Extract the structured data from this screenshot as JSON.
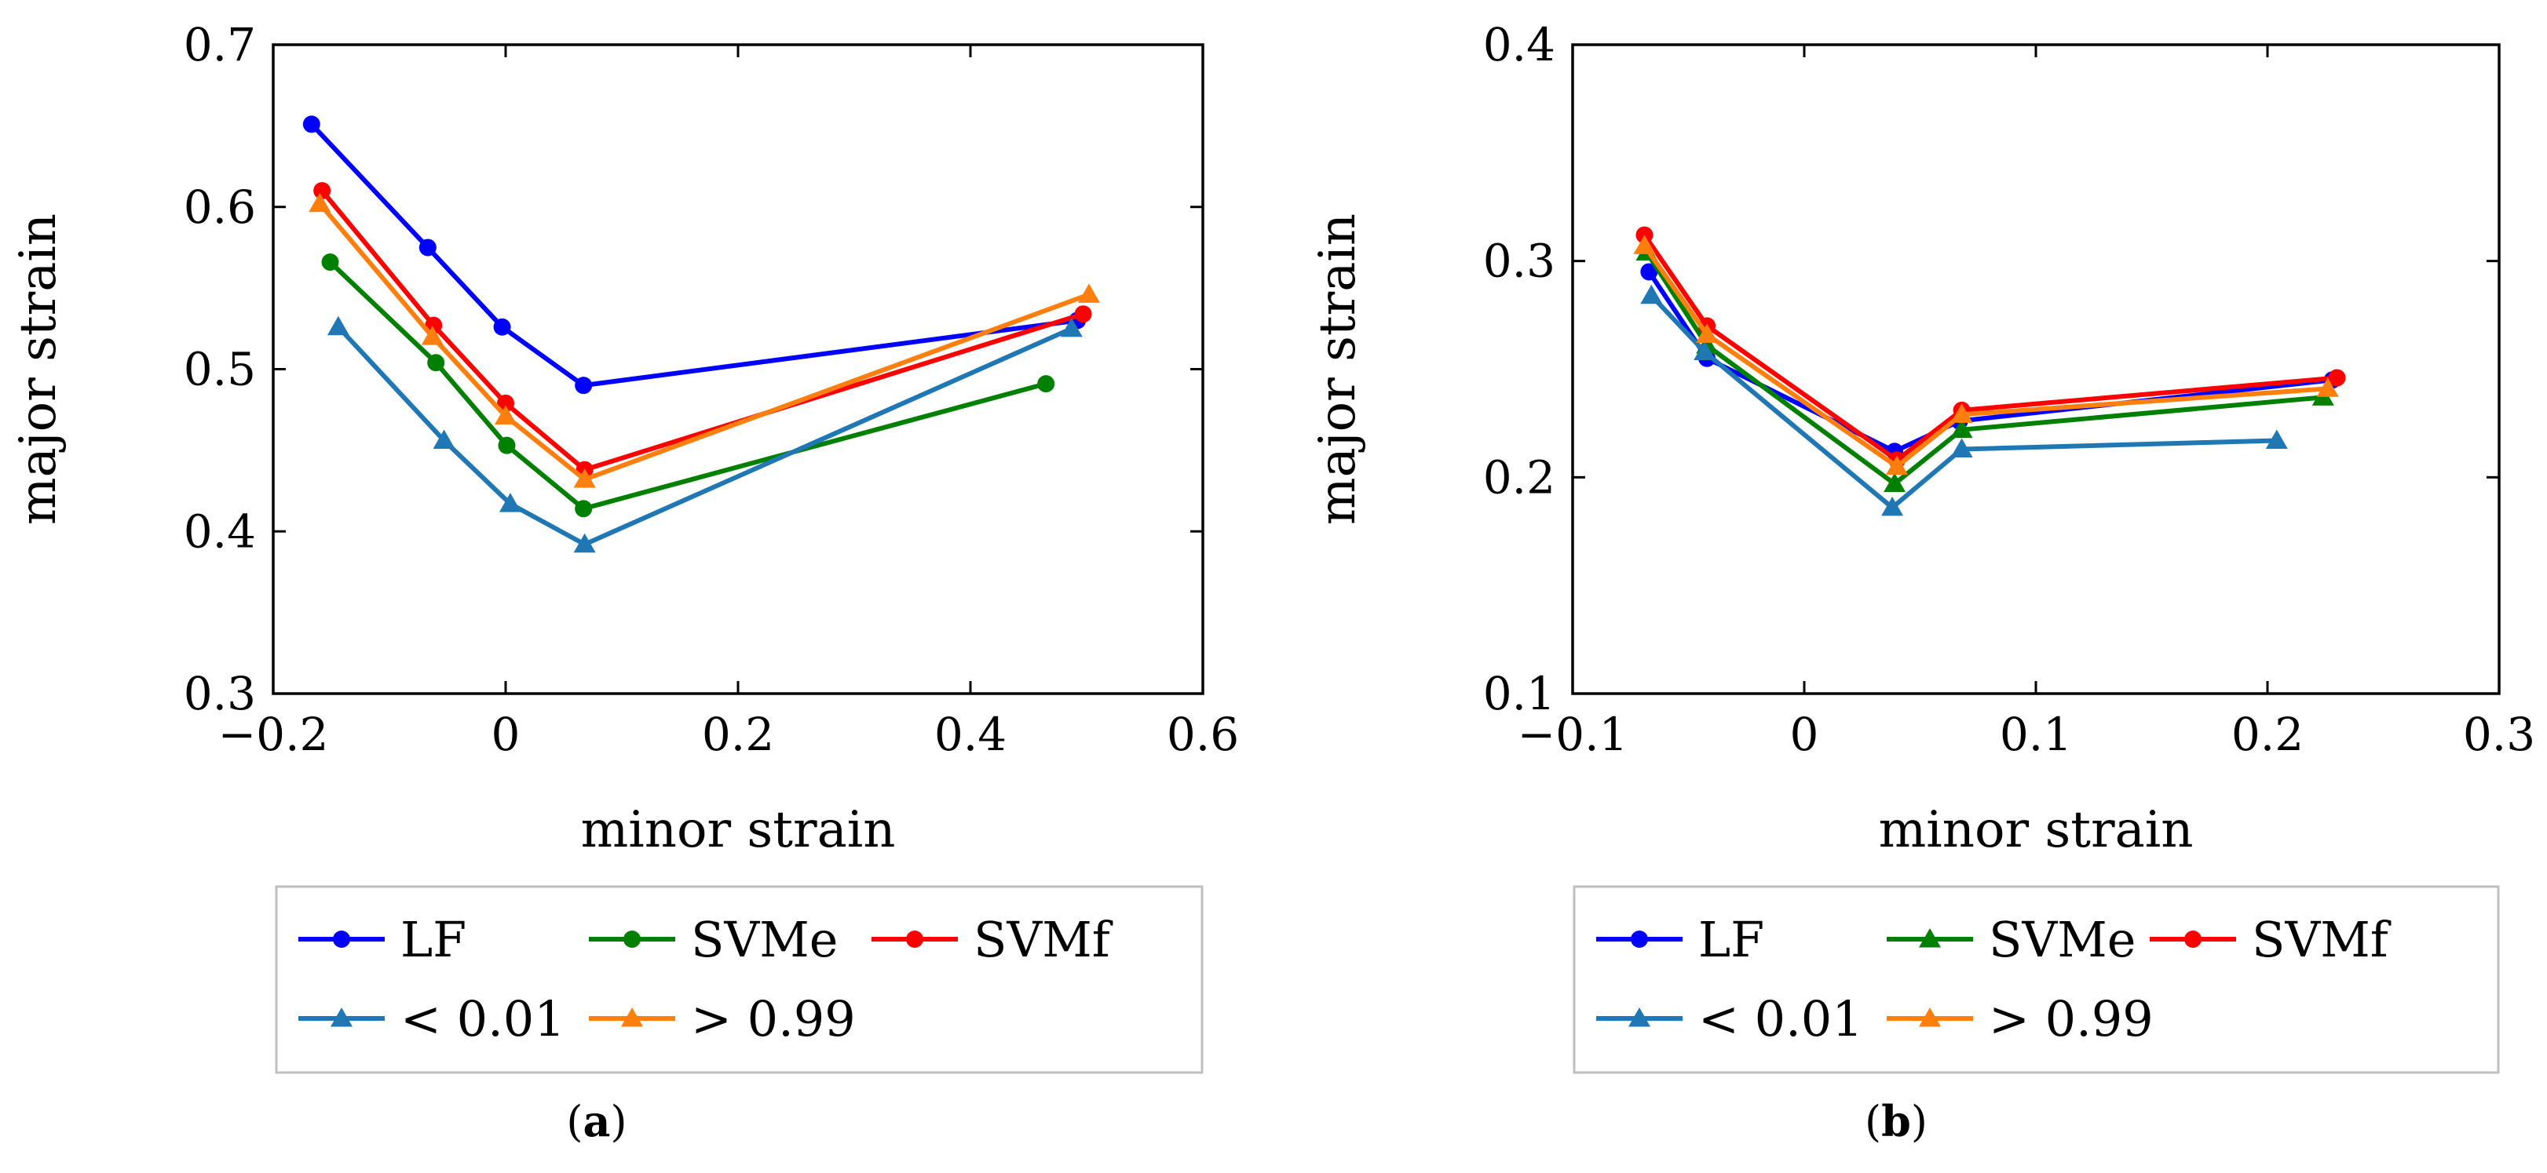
{
  "chart_data": [
    {
      "id": "a",
      "panel_label": "a",
      "type": "line",
      "xlabel": "minor strain",
      "ylabel": "major strain",
      "xlim": [
        -0.2,
        0.6
      ],
      "ylim": [
        0.3,
        0.7
      ],
      "xticks": [
        -0.2,
        0,
        0.2,
        0.4,
        0.6
      ],
      "yticks": [
        0.3,
        0.4,
        0.5,
        0.6,
        0.7
      ],
      "xtick_labels": [
        "−0.2",
        "0",
        "0.2",
        "0.4",
        "0.6"
      ],
      "ytick_labels": [
        "0.3",
        "0.4",
        "0.5",
        "0.6",
        "0.7"
      ],
      "grid": false,
      "legend_position": "below",
      "series": [
        {
          "name": "LF",
          "color": "#0000ff",
          "marker": "circle",
          "points": [
            [
              -0.167,
              0.651
            ],
            [
              -0.067,
              0.575
            ],
            [
              -0.003,
              0.526
            ],
            [
              0.067,
              0.49
            ],
            [
              0.492,
              0.53
            ]
          ]
        },
        {
          "name": "SVMe",
          "color": "#008000",
          "marker": "circle",
          "points": [
            [
              -0.151,
              0.566
            ],
            [
              -0.06,
              0.504
            ],
            [
              0.001,
              0.453
            ],
            [
              0.067,
              0.414
            ],
            [
              0.465,
              0.491
            ]
          ]
        },
        {
          "name": "SVMf",
          "color": "#ff0000",
          "marker": "circle",
          "points": [
            [
              -0.158,
              0.61
            ],
            [
              -0.062,
              0.527
            ],
            [
              0.0,
              0.479
            ],
            [
              0.068,
              0.438
            ],
            [
              0.497,
              0.534
            ]
          ]
        },
        {
          "name": "< 0.01",
          "color": "#1f77b4",
          "marker": "triangle",
          "points": [
            [
              -0.144,
              0.526
            ],
            [
              -0.053,
              0.456
            ],
            [
              0.004,
              0.417
            ],
            [
              0.068,
              0.392
            ],
            [
              0.487,
              0.525
            ]
          ]
        },
        {
          "name": "> 0.99",
          "color": "#ff7f0e",
          "marker": "triangle",
          "points": [
            [
              -0.16,
              0.602
            ],
            [
              -0.063,
              0.52
            ],
            [
              0.0,
              0.471
            ],
            [
              0.068,
              0.432
            ],
            [
              0.502,
              0.546
            ]
          ]
        }
      ],
      "legend_rows": [
        [
          "LF",
          "SVMe",
          "SVMf"
        ],
        [
          "< 0.01",
          "> 0.99"
        ]
      ]
    },
    {
      "id": "b",
      "panel_label": "b",
      "type": "line",
      "xlabel": "minor strain",
      "ylabel": "major strain",
      "xlim": [
        -0.1,
        0.3
      ],
      "ylim": [
        0.1,
        0.4
      ],
      "xticks": [
        -0.1,
        0,
        0.1,
        0.2,
        0.3
      ],
      "yticks": [
        0.1,
        0.2,
        0.3,
        0.4
      ],
      "xtick_labels": [
        "−0.1",
        "0",
        "0.1",
        "0.2",
        "0.3"
      ],
      "ytick_labels": [
        "0.1",
        "0.2",
        "0.3",
        "0.4"
      ],
      "grid": false,
      "legend_position": "below",
      "series": [
        {
          "name": "LF",
          "color": "#0000ff",
          "marker": "circle",
          "points": [
            [
              -0.067,
              0.295
            ],
            [
              -0.042,
              0.255
            ],
            [
              0.039,
              0.212
            ],
            [
              0.067,
              0.226
            ],
            [
              0.228,
              0.245
            ]
          ]
        },
        {
          "name": "SVMe",
          "color": "#008000",
          "marker": "triangle",
          "points": [
            [
              -0.068,
              0.304
            ],
            [
              -0.042,
              0.261
            ],
            [
              0.039,
              0.197
            ],
            [
              0.068,
              0.222
            ],
            [
              0.224,
              0.237
            ]
          ]
        },
        {
          "name": "SVMf",
          "color": "#ff0000",
          "marker": "circle",
          "points": [
            [
              -0.069,
              0.312
            ],
            [
              -0.042,
              0.27
            ],
            [
              0.04,
              0.208
            ],
            [
              0.068,
              0.231
            ],
            [
              0.23,
              0.246
            ]
          ]
        },
        {
          "name": "< 0.01",
          "color": "#1f77b4",
          "marker": "triangle",
          "points": [
            [
              -0.066,
              0.284
            ],
            [
              -0.043,
              0.258
            ],
            [
              0.038,
              0.186
            ],
            [
              0.068,
              0.213
            ],
            [
              0.204,
              0.217
            ]
          ]
        },
        {
          "name": "> 0.99",
          "color": "#ff7f0e",
          "marker": "triangle",
          "points": [
            [
              -0.069,
              0.307
            ],
            [
              -0.042,
              0.266
            ],
            [
              0.04,
              0.205
            ],
            [
              0.068,
              0.229
            ],
            [
              0.226,
              0.241
            ]
          ]
        }
      ],
      "legend_rows": [
        [
          "LF",
          "SVMe",
          "SVMf"
        ],
        [
          "< 0.01",
          "> 0.99"
        ]
      ]
    }
  ]
}
